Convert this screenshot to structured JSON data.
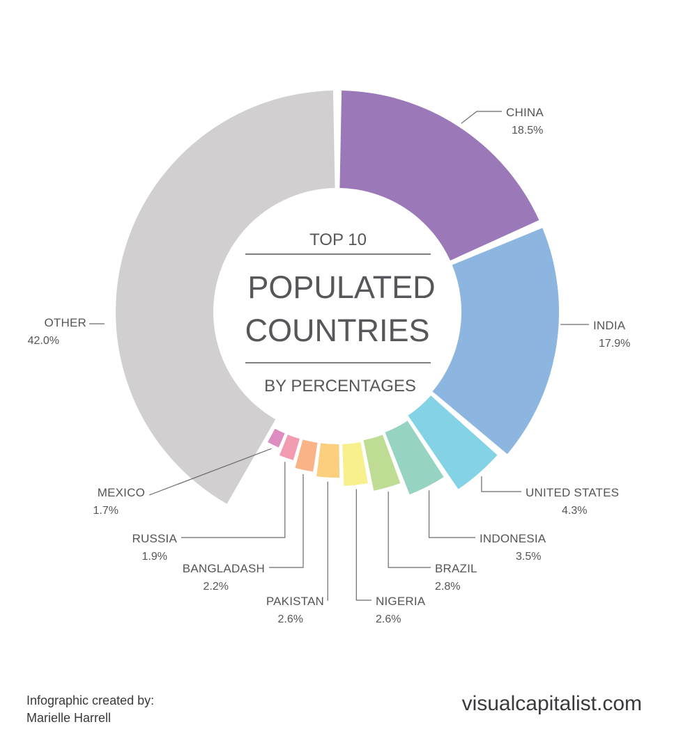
{
  "chart_data": {
    "type": "pie",
    "style": "donut",
    "center_text": {
      "top": "TOP 10",
      "line1": "POPULATED",
      "line2": "COUNTRIES",
      "bottom": "BY PERCENTAGES"
    },
    "slices": [
      {
        "label": "CHINA",
        "value": 18.5,
        "display": "18.5%",
        "color": "#9b78b7"
      },
      {
        "label": "INDIA",
        "value": 17.9,
        "display": "17.9%",
        "color": "#8cb6e0"
      },
      {
        "label": "UNITED STATES",
        "value": 4.3,
        "display": "4.3%",
        "color": "#84d2e6"
      },
      {
        "label": "INDONESIA",
        "value": 3.5,
        "display": "3.5%",
        "color": "#96d3c3"
      },
      {
        "label": "BRAZIL",
        "value": 2.8,
        "display": "2.8%",
        "color": "#bedc94"
      },
      {
        "label": "NIGERIA",
        "value": 2.6,
        "display": "2.6%",
        "color": "#f8f08c"
      },
      {
        "label": "PAKISTAN",
        "value": 2.6,
        "display": "2.6%",
        "color": "#fbcf7d"
      },
      {
        "label": "BANGLADASH",
        "value": 2.2,
        "display": "2.2%",
        "color": "#f8b387"
      },
      {
        "label": "RUSSIA",
        "value": 1.9,
        "display": "1.9%",
        "color": "#f39bb1"
      },
      {
        "label": "MEXICO",
        "value": 1.7,
        "display": "1.7%",
        "color": "#dc8cc0"
      },
      {
        "label": "OTHER",
        "value": 42.0,
        "display": "42.0%",
        "color": "#d1cfd0"
      }
    ]
  },
  "footer": {
    "credit_line1": "Infographic created by:",
    "credit_line2": "Marielle Harrell",
    "site": "visualcapitalist.com"
  }
}
